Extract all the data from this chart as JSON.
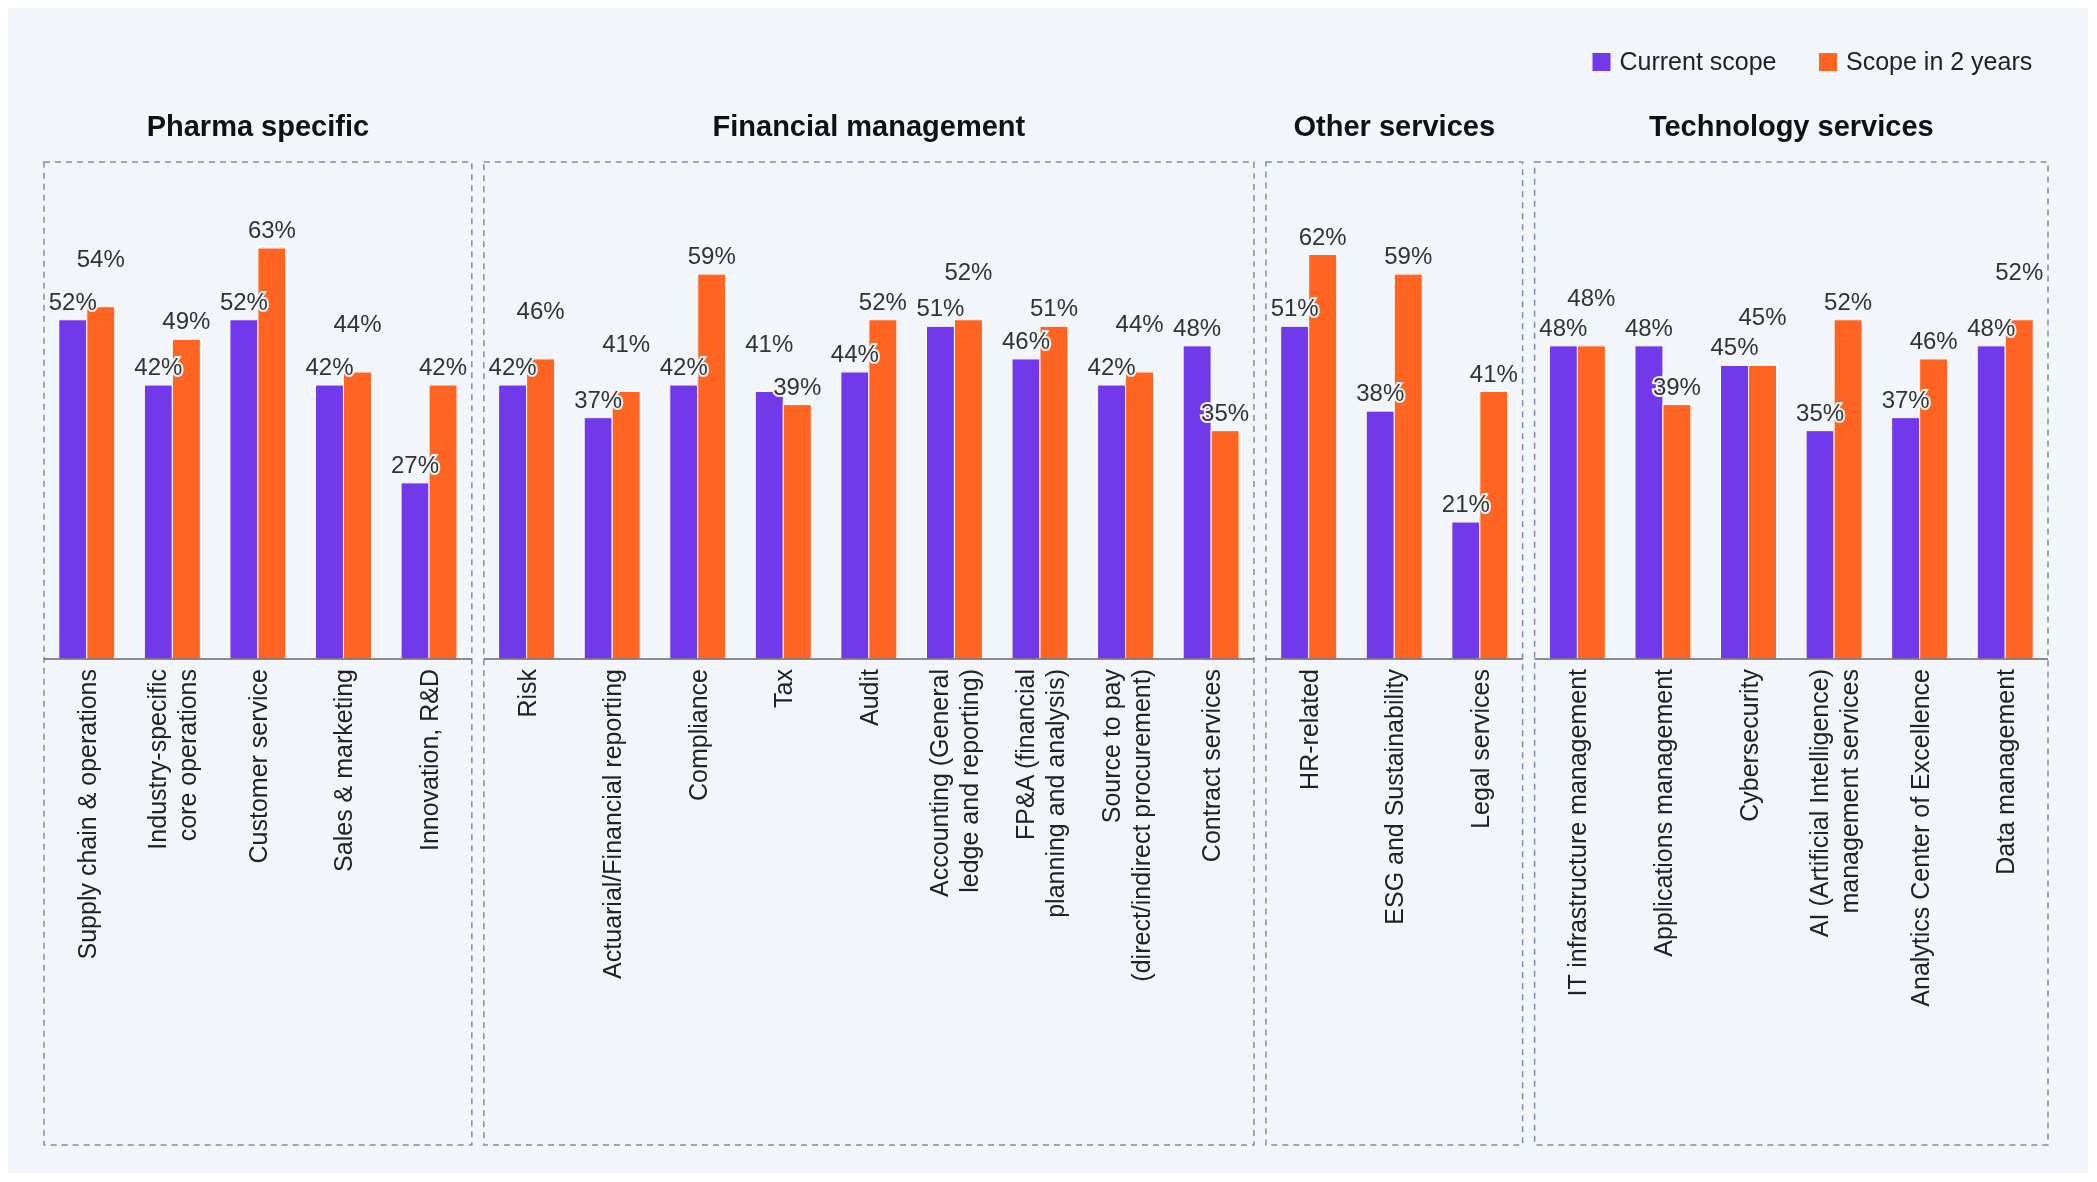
{
  "chart_data": [
    {
      "type": "bar",
      "title": "Pharma specific",
      "categories": [
        "Supply chain & operations",
        "Industry-specific core operations",
        "Customer service",
        "Sales & marketing",
        "Innovation, R&D"
      ],
      "series": [
        {
          "color": "#7239ea",
          "values": [
            52,
            42,
            52,
            42,
            27
          ],
          "value_labels": [
            "52%",
            "42%",
            "52%",
            "42%",
            "27%"
          ]
        },
        {
          "color": "#ff6422",
          "values": [
            54,
            49,
            63,
            44,
            42
          ],
          "value_labels": [
            "54%",
            "49%",
            "63%",
            "44%",
            "42%"
          ]
        }
      ]
    },
    {
      "type": "bar",
      "title": "Financial management",
      "categories": [
        "Risk",
        "Actuarial/Financial reporting",
        "Compliance",
        "Tax",
        "Audit",
        "Accounting (General ledge and reporting)",
        "FP&A (financial planning and analysis)",
        "Source to pay (direct/indirect procurement)",
        "Contract services"
      ],
      "series": [
        {
          "color": "#7239ea",
          "values": [
            42,
            37,
            42,
            41,
            44,
            51,
            46,
            42,
            48
          ],
          "value_labels": [
            "42%",
            "37%",
            "42%",
            "41%",
            "44%",
            "51%",
            "46%",
            "42%",
            "48%"
          ]
        },
        {
          "color": "#ff6422",
          "values": [
            46,
            41,
            59,
            39,
            52,
            52,
            51,
            44,
            35
          ],
          "value_labels": [
            "46%",
            "41%",
            "59%",
            "39%",
            "52%",
            "52%",
            "51%",
            "44%",
            "35%"
          ]
        }
      ]
    },
    {
      "type": "bar",
      "title": "Other services",
      "categories": [
        "HR-related",
        "ESG and Sustainability",
        "Legal services"
      ],
      "series": [
        {
          "color": "#7239ea",
          "values": [
            51,
            38,
            21
          ],
          "value_labels": [
            "51%",
            "38%",
            "21%"
          ]
        },
        {
          "color": "#ff6422",
          "values": [
            62,
            59,
            41
          ],
          "value_labels": [
            "62%",
            "59%",
            "41%"
          ]
        }
      ]
    },
    {
      "type": "bar",
      "title": "Technology services",
      "legend": "top right",
      "categories": [
        "IT infrastructure management",
        "Applications management",
        "Cybersecurity",
        "AI (Artificial Intelligence) management services",
        "Analytics Center of Excellence",
        "Data management"
      ],
      "series": [
        {
          "name": "Current scope",
          "color": "#7239ea",
          "values": [
            48,
            48,
            45,
            35,
            37,
            48
          ],
          "value_labels": [
            "48%",
            "48%",
            "45%",
            "35%",
            "37%",
            "48%"
          ]
        },
        {
          "name": "Scope in 2 years",
          "color": "#ff6422",
          "values": [
            48,
            39,
            45,
            52,
            46,
            52
          ],
          "value_labels": [
            "48%",
            "39%",
            "45%",
            "52%",
            "46%",
            "52%"
          ]
        }
      ]
    }
  ]
}
